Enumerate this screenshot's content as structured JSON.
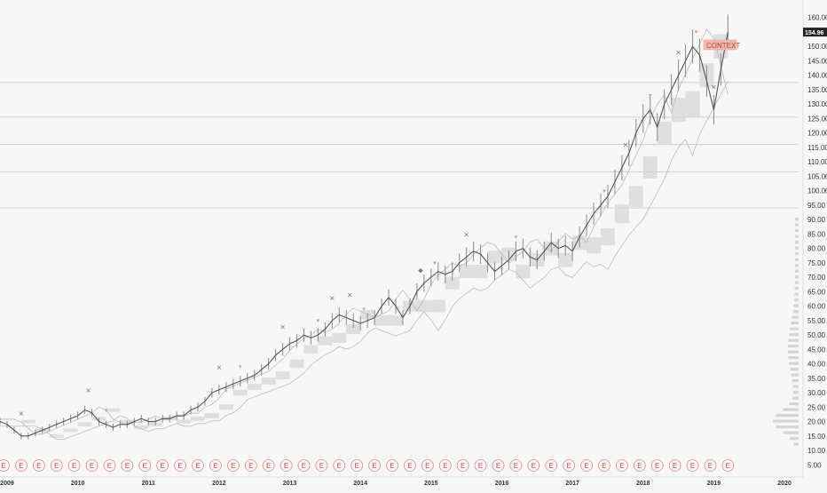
{
  "chart_data": {
    "type": "line",
    "title": "",
    "xlabel": "",
    "ylabel": "",
    "x_ticks": [
      "2009",
      "2010",
      "2011",
      "2012",
      "2013",
      "2014",
      "2015",
      "2016",
      "2017",
      "2018",
      "2019",
      "2020"
    ],
    "x_range": [
      2008.9,
      2020.2
    ],
    "ylim": [
      2,
      163
    ],
    "y_ticks": [
      5,
      10,
      15,
      20,
      25,
      30,
      35,
      40,
      45,
      50,
      55,
      60,
      65,
      70,
      75,
      80,
      85,
      90,
      95,
      100,
      105,
      110,
      115,
      120,
      125,
      130,
      135,
      140,
      145,
      150,
      155,
      160
    ],
    "y_tick_labels": [
      "5.00",
      "10.00",
      "15.00",
      "20.00",
      "25.00",
      "30.00",
      "35.00",
      "40.00",
      "45.00",
      "50.00",
      "55.00",
      "60.00",
      "65.00",
      "70.00",
      "75.00",
      "80.00",
      "85.00",
      "90.00",
      "95.00",
      "100.00",
      "105.00",
      "110.00",
      "115.00",
      "120.00",
      "125.00",
      "130.00",
      "135.00",
      "140.00",
      "145.00",
      "150.00",
      "155.00",
      "160.00"
    ],
    "current_price_label": "154.96",
    "current_price": 154.96,
    "annotation": "CONTEXT",
    "grid": false,
    "series": [
      {
        "x": [
          2008.9,
          2009.0,
          2009.1,
          2009.2,
          2009.3,
          2009.4,
          2009.5,
          2009.6,
          2009.7,
          2009.8,
          2009.9,
          2010.0,
          2010.1,
          2010.2,
          2010.3,
          2010.4,
          2010.5,
          2010.6,
          2010.7,
          2010.8,
          2010.9,
          2011.0,
          2011.1,
          2011.2,
          2011.3,
          2011.4,
          2011.5,
          2011.6,
          2011.7,
          2011.8,
          2011.9,
          2012.0,
          2012.1,
          2012.2,
          2012.3,
          2012.4,
          2012.5,
          2012.6,
          2012.7,
          2012.8,
          2012.9,
          2013.0,
          2013.1,
          2013.2,
          2013.3,
          2013.4,
          2013.5,
          2013.6,
          2013.7,
          2013.8,
          2013.9,
          2014.0,
          2014.1,
          2014.2,
          2014.3,
          2014.4,
          2014.5,
          2014.6,
          2014.7,
          2014.8,
          2014.9,
          2015.0,
          2015.1,
          2015.2,
          2015.3,
          2015.4,
          2015.5,
          2015.6,
          2015.7,
          2015.8,
          2015.9,
          2016.0,
          2016.1,
          2016.2,
          2016.3,
          2016.4,
          2016.5,
          2016.6,
          2016.7,
          2016.8,
          2016.9,
          2017.0,
          2017.1,
          2017.2,
          2017.3,
          2017.4,
          2017.5,
          2017.6,
          2017.7,
          2017.8,
          2017.9,
          2018.0,
          2018.1,
          2018.2,
          2018.3,
          2018.4,
          2018.5,
          2018.6,
          2018.7,
          2018.8,
          2018.9,
          2019.0,
          2019.1,
          2019.2
        ],
        "values": [
          20,
          19,
          17,
          15,
          15,
          16,
          17,
          18,
          19,
          20,
          21,
          22,
          24,
          23,
          20,
          19,
          18,
          19,
          19,
          20,
          21,
          20,
          20,
          21,
          21,
          22,
          22,
          24,
          25,
          27,
          30,
          31,
          32,
          33,
          34,
          35,
          36,
          38,
          40,
          43,
          45,
          47,
          48,
          50,
          49,
          50,
          52,
          55,
          57,
          56,
          55,
          54,
          55,
          56,
          60,
          63,
          60,
          56,
          60,
          65,
          68,
          70,
          72,
          71,
          72,
          75,
          77,
          79,
          78,
          75,
          72,
          74,
          76,
          79,
          80,
          77,
          76,
          79,
          82,
          80,
          81,
          79,
          84,
          88,
          92,
          95,
          98,
          103,
          108,
          113,
          120,
          125,
          128,
          122,
          130,
          135,
          140,
          145,
          150,
          147,
          138,
          128,
          142,
          155
        ]
      }
    ],
    "horizontal_levels": [
      137.5,
      125.5,
      116,
      106.5,
      94
    ],
    "earnings_marker_label": "E",
    "marker_symbols": {
      "x": "×",
      "triangle": "▾",
      "diamond": "◆"
    }
  }
}
